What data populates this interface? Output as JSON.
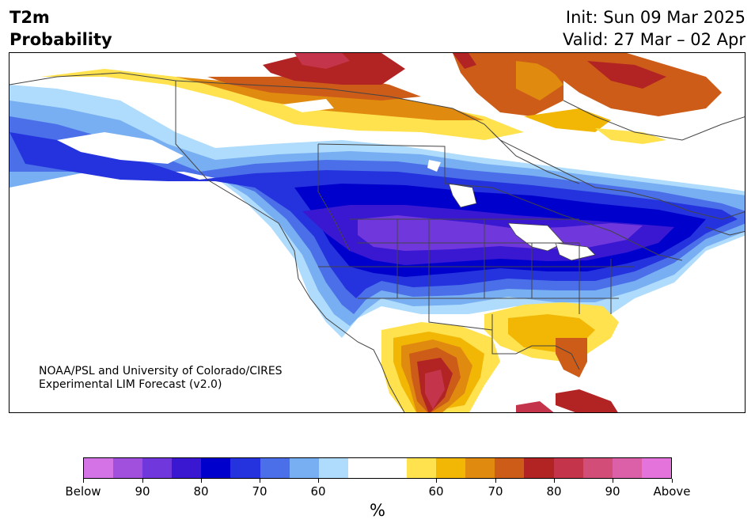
{
  "title": {
    "line1": "T2m",
    "line2": "Probability"
  },
  "dates": {
    "init": "Init: Sun 09 Mar 2025",
    "valid": "Valid: 27 Mar – 02 Apr"
  },
  "credit": {
    "line1": "NOAA/PSL and University of Colorado/CIRES",
    "line2": "Experimental LIM Forecast (v2.0)"
  },
  "colorbar": {
    "colors": [
      "#d473e6",
      "#a050dc",
      "#7038dc",
      "#3a18d2",
      "#0000cd",
      "#2433dd",
      "#4a6fe8",
      "#78aef2",
      "#afdcfc",
      "#ffffff",
      "#ffffff",
      "#ffe24d",
      "#f2b705",
      "#e08a10",
      "#cc5c18",
      "#b22424",
      "#c4344a",
      "#d24d78",
      "#dc60a8",
      "#e473dc"
    ],
    "ticks": [
      "Below",
      "90",
      "80",
      "70",
      "60",
      "60",
      "70",
      "80",
      "90",
      "Above"
    ],
    "unit": "%"
  },
  "legend_colors": {
    "below_strong": "#7038dc",
    "below": "#0000cd",
    "below_weak": "#afdcfc",
    "above_weak": "#ffe24d",
    "above": "#cc5c18",
    "above_strong": "#b22424",
    "border": "#444444"
  }
}
